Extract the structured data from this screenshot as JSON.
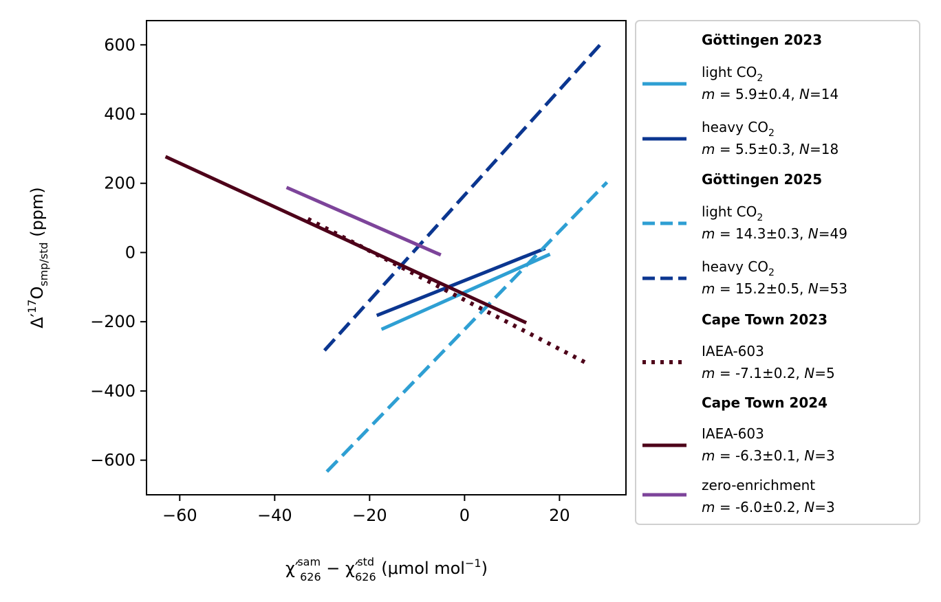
{
  "chart_data": {
    "type": "line",
    "xlabel": "χ′sam626 − χ′std626 (μmol mol−1)",
    "ylabel": "Δ′17Osmp/std (ppm)",
    "xlim": [
      -67,
      34
    ],
    "ylim": [
      -700,
      670
    ],
    "x_ticks": [
      -60,
      -40,
      -20,
      0,
      20
    ],
    "y_ticks": [
      -600,
      -400,
      -200,
      0,
      200,
      400,
      600
    ],
    "x_tick_labels": [
      "−60",
      "−40",
      "−20",
      "0",
      "20"
    ],
    "y_tick_labels": [
      "−600",
      "−400",
      "−200",
      "0",
      "200",
      "400",
      "600"
    ],
    "grid": false,
    "legend_position": "outside-right",
    "series": [
      {
        "group": "Göttingen 2023",
        "name": "light CO2",
        "stats": "m = 5.9±0.4, N=14",
        "color": "#2e9fd3",
        "style": "solid",
        "x": [
          -17.5,
          18
        ],
        "y": [
          -222,
          -5
        ]
      },
      {
        "group": "Göttingen 2023",
        "name": "heavy CO2",
        "stats": "m = 5.5±0.3, N=18",
        "color": "#0b3690",
        "style": "solid",
        "x": [
          -18.5,
          17
        ],
        "y": [
          -182,
          12
        ]
      },
      {
        "group": "Göttingen 2025",
        "name": "light CO2",
        "stats": "m = 14.3±0.3, N=49",
        "color": "#2e9fd3",
        "style": "dashed",
        "x": [
          -29,
          30
        ],
        "y": [
          -633,
          203
        ]
      },
      {
        "group": "Göttingen 2025",
        "name": "heavy CO2",
        "stats": "m = 15.2±0.5, N=53",
        "color": "#0b3690",
        "style": "dashed",
        "x": [
          -29.5,
          29
        ],
        "y": [
          -283,
          607
        ]
      },
      {
        "group": "Cape Town 2023",
        "name": "IAEA-603",
        "stats": "m = -7.1±0.2, N=5",
        "color": "#4d0019",
        "style": "dotted",
        "x": [
          -33,
          25.5
        ],
        "y": [
          97,
          -318
        ]
      },
      {
        "group": "Cape Town 2024",
        "name": "IAEA-603",
        "stats": "m = -6.3±0.1, N=3",
        "color": "#4d0019",
        "style": "solid",
        "x": [
          -63,
          13
        ],
        "y": [
          277,
          -203
        ]
      },
      {
        "group": "Cape Town 2024",
        "name": "zero-enrichment",
        "stats": "m = -6.0±0.2, N=3",
        "color": "#7d449a",
        "style": "solid",
        "x": [
          -37.5,
          -5
        ],
        "y": [
          188,
          -7
        ]
      }
    ]
  },
  "legend": {
    "header_g2023": "Göttingen 2023",
    "header_g2025": "Göttingen 2025",
    "header_ct2023": "Cape Town 2023",
    "header_ct2024": "Cape Town 2024",
    "e1_name": "light CO",
    "e1_sub": "2",
    "e1_m": "m",
    "e1_stats": " = 5.9±0.4, ",
    "e1_n": "N",
    "e1_nval": "=14",
    "e2_name": "heavy CO",
    "e2_sub": "2",
    "e2_m": "m",
    "e2_stats": " = 5.5±0.3, ",
    "e2_n": "N",
    "e2_nval": "=18",
    "e3_name": "light CO",
    "e3_sub": "2",
    "e3_m": "m",
    "e3_stats": " = 14.3±0.3, ",
    "e3_n": "N",
    "e3_nval": "=49",
    "e4_name": "heavy CO",
    "e4_sub": "2",
    "e4_m": "m",
    "e4_stats": " = 15.2±0.5, ",
    "e4_n": "N",
    "e4_nval": "=53",
    "e5_name": "IAEA-603",
    "e5_m": "m",
    "e5_stats": " = -7.1±0.2, ",
    "e5_n": "N",
    "e5_nval": "=5",
    "e6_name": "IAEA-603",
    "e6_m": "m",
    "e6_stats": " = -6.3±0.1, ",
    "e6_n": "N",
    "e6_nval": "=3",
    "e7_name": "zero-enrichment",
    "e7_m": "m",
    "e7_stats": " = -6.0±0.2, ",
    "e7_n": "N",
    "e7_nval": "=3"
  },
  "axis_text": {
    "x_chi": "χ′",
    "x_sup1": "sam",
    "x_sub1": "626",
    "x_minus": " − ",
    "x_chi2": "χ′",
    "x_sup2": "std",
    "x_sub2": "626",
    "x_unit_a": " (μmol mol",
    "x_unit_sup": "−1",
    "x_unit_b": ")",
    "y_delta": "Δ′",
    "y_sup": "17",
    "y_o": "O",
    "y_sub": "smp/std",
    "y_unit": " (ppm)"
  }
}
